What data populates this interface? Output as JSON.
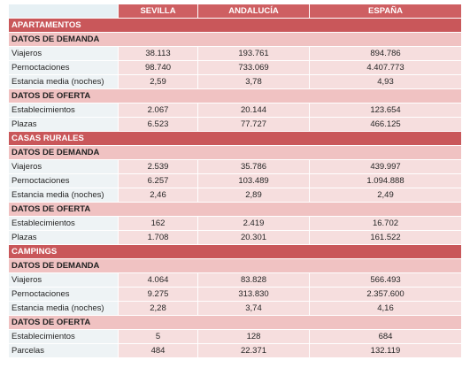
{
  "header": {
    "corner": "",
    "cols": [
      "SEVILLA",
      "ANDALUCÍA",
      "ESPAÑA"
    ]
  },
  "rows": [
    {
      "kind": "section",
      "label": "APARTAMENTOS"
    },
    {
      "kind": "sub",
      "label": "DATOS DE DEMANDA"
    },
    {
      "kind": "data",
      "label": "Viajeros",
      "values": [
        "38.113",
        "193.761",
        "894.786"
      ]
    },
    {
      "kind": "data",
      "label": "Pernoctaciones",
      "values": [
        "98.740",
        "733.069",
        "4.407.773"
      ]
    },
    {
      "kind": "data",
      "label": "Estancia media (noches)",
      "values": [
        "2,59",
        "3,78",
        "4,93"
      ]
    },
    {
      "kind": "sub",
      "label": "DATOS DE OFERTA"
    },
    {
      "kind": "data",
      "label": "Establecimientos",
      "values": [
        "2.067",
        "20.144",
        "123.654"
      ]
    },
    {
      "kind": "data",
      "label": "Plazas",
      "values": [
        "6.523",
        "77.727",
        "466.125"
      ]
    },
    {
      "kind": "section",
      "label": "CASAS RURALES"
    },
    {
      "kind": "sub",
      "label": "DATOS DE DEMANDA"
    },
    {
      "kind": "data",
      "label": "Viajeros",
      "values": [
        "2.539",
        "35.786",
        "439.997"
      ]
    },
    {
      "kind": "data",
      "label": "Pernoctaciones",
      "values": [
        "6.257",
        "103.489",
        "1.094.888"
      ]
    },
    {
      "kind": "data",
      "label": "Estancia media (noches)",
      "values": [
        "2,46",
        "2,89",
        "2,49"
      ]
    },
    {
      "kind": "sub",
      "label": "DATOS DE OFERTA"
    },
    {
      "kind": "data",
      "label": "Establecimientos",
      "values": [
        "162",
        "2.419",
        "16.702"
      ]
    },
    {
      "kind": "data",
      "label": "Plazas",
      "values": [
        "1.708",
        "20.301",
        "161.522"
      ]
    },
    {
      "kind": "section",
      "label": "CAMPINGS"
    },
    {
      "kind": "sub",
      "label": "DATOS DE DEMANDA"
    },
    {
      "kind": "data",
      "label": "Viajeros",
      "values": [
        "4.064",
        "83.828",
        "566.493"
      ]
    },
    {
      "kind": "data",
      "label": "Pernoctaciones",
      "values": [
        "9.275",
        "313.830",
        "2.357.600"
      ]
    },
    {
      "kind": "data",
      "label": "Estancia media (noches)",
      "values": [
        "2,28",
        "3,74",
        "4,16"
      ]
    },
    {
      "kind": "sub",
      "label": "DATOS DE OFERTA"
    },
    {
      "kind": "data",
      "label": "Establecimientos",
      "values": [
        "5",
        "128",
        "684"
      ]
    },
    {
      "kind": "data",
      "label": "Parcelas",
      "values": [
        "484",
        "22.371",
        "132.119"
      ]
    }
  ],
  "colors": {
    "header_bg": "#ce5f62",
    "section_bg": "#c9575a",
    "subsection_bg": "#f0c2c2",
    "data_bg": "#f6dede",
    "label_bg": "#eef3f5"
  }
}
